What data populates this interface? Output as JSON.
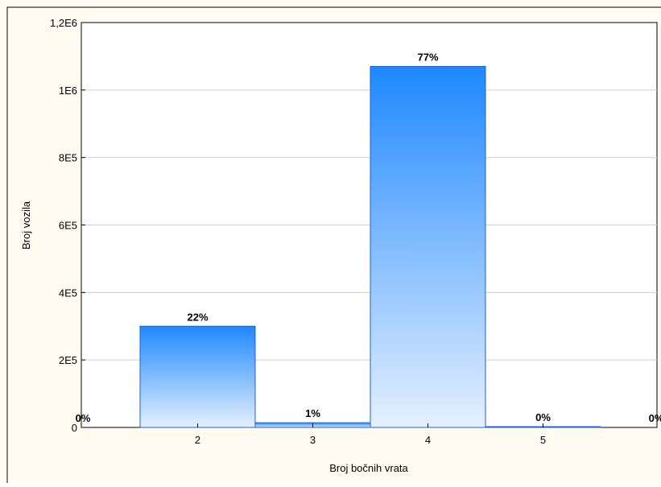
{
  "colors": {
    "page_background": "#fffbf0",
    "plot_background": "#ffffff",
    "bar_top": "#1e88ff",
    "bar_bottom": "#e6f0ff",
    "bar_stroke": "#1f5fd6",
    "grid": "#cfcfcf"
  },
  "chart_data": {
    "type": "bar",
    "title": "",
    "xlabel": "Broj bočnih vrata",
    "ylabel": "Broj vozila",
    "categories": [
      "2",
      "3",
      "4",
      "5"
    ],
    "values": [
      300000,
      14000,
      1070000,
      1500
    ],
    "bar_labels": [
      "22%",
      "1%",
      "77%",
      "0%"
    ],
    "edge_labels": [
      "0%",
      "0%"
    ],
    "ylim": [
      0,
      1200000
    ],
    "y_ticks": [
      0,
      200000,
      400000,
      600000,
      800000,
      1000000,
      1200000
    ],
    "y_tick_labels": [
      "0",
      "2E5",
      "4E5",
      "6E5",
      "8E5",
      "1E6",
      "1,2E6"
    ],
    "grid": true,
    "legend": "none"
  }
}
